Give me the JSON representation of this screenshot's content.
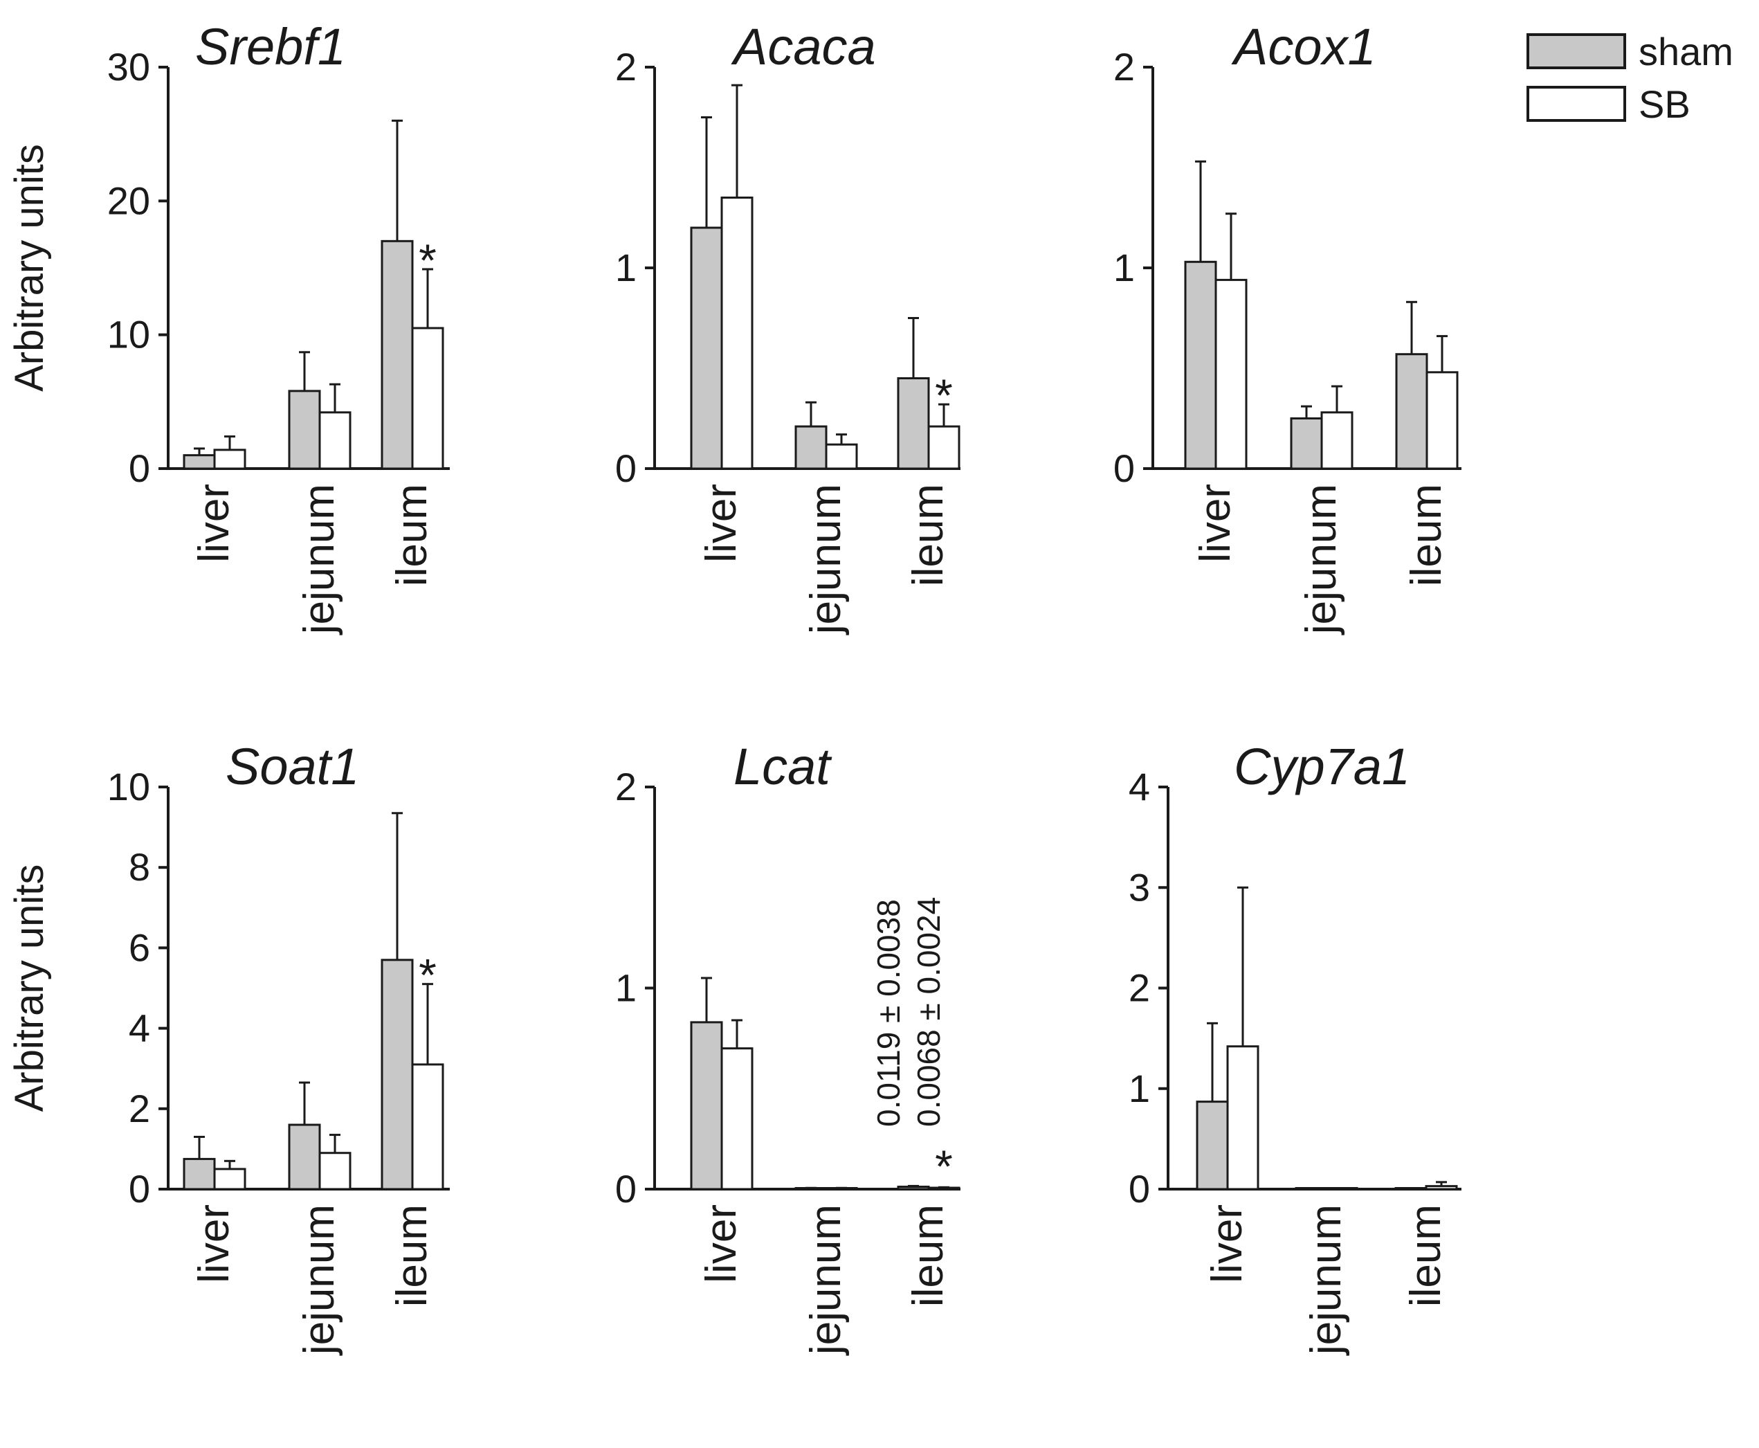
{
  "chart_data": [
    {
      "type": "bar",
      "title": "Srebf1",
      "ylabel": "Arbitrary units",
      "categories": [
        "liver",
        "jejunum",
        "ileum"
      ],
      "yticks": [
        0,
        10,
        20,
        30
      ],
      "ylim": [
        0,
        30
      ],
      "series": [
        {
          "name": "sham",
          "values": [
            1.0,
            5.8,
            17.0
          ],
          "errors": [
            0.5,
            2.9,
            9.0
          ]
        },
        {
          "name": "SB",
          "values": [
            1.4,
            4.2,
            10.5
          ],
          "errors": [
            1.0,
            2.1,
            4.4
          ]
        }
      ],
      "annotations": [
        {
          "text": "*",
          "category": "ileum"
        }
      ],
      "notes": []
    },
    {
      "type": "bar",
      "title": "Acaca",
      "ylabel": "",
      "categories": [
        "liver",
        "jejunum",
        "ileum"
      ],
      "yticks": [
        0,
        1,
        2
      ],
      "ylim": [
        0,
        2
      ],
      "series": [
        {
          "name": "sham",
          "values": [
            1.2,
            0.21,
            0.45
          ],
          "errors": [
            0.55,
            0.12,
            0.3
          ]
        },
        {
          "name": "SB",
          "values": [
            1.35,
            0.12,
            0.21
          ],
          "errors": [
            0.56,
            0.05,
            0.11
          ]
        }
      ],
      "annotations": [
        {
          "text": "*",
          "category": "ileum"
        }
      ],
      "notes": []
    },
    {
      "type": "bar",
      "title": "Acox1",
      "ylabel": "",
      "categories": [
        "liver",
        "jejunum",
        "ileum"
      ],
      "yticks": [
        0,
        1,
        2
      ],
      "ylim": [
        0,
        2
      ],
      "series": [
        {
          "name": "sham",
          "values": [
            1.03,
            0.25,
            0.57
          ],
          "errors": [
            0.5,
            0.06,
            0.26
          ]
        },
        {
          "name": "SB",
          "values": [
            0.94,
            0.28,
            0.48
          ],
          "errors": [
            0.33,
            0.13,
            0.18
          ]
        }
      ],
      "annotations": [],
      "notes": []
    },
    {
      "type": "bar",
      "title": "Soat1",
      "ylabel": "Arbitrary units",
      "categories": [
        "liver",
        "jejunum",
        "ileum"
      ],
      "yticks": [
        0,
        2,
        4,
        6,
        8,
        10
      ],
      "ylim": [
        0,
        10
      ],
      "series": [
        {
          "name": "sham",
          "values": [
            0.75,
            1.6,
            5.7
          ],
          "errors": [
            0.55,
            1.05,
            3.65
          ]
        },
        {
          "name": "SB",
          "values": [
            0.5,
            0.9,
            3.1
          ],
          "errors": [
            0.2,
            0.45,
            2.0
          ]
        }
      ],
      "annotations": [
        {
          "text": "*",
          "category": "ileum"
        }
      ],
      "notes": []
    },
    {
      "type": "bar",
      "title": "Lcat",
      "ylabel": "",
      "categories": [
        "liver",
        "jejunum",
        "ileum"
      ],
      "yticks": [
        0,
        1,
        2
      ],
      "ylim": [
        0,
        2
      ],
      "series": [
        {
          "name": "sham",
          "values": [
            0.83,
            0.004,
            0.0119
          ],
          "errors": [
            0.22,
            0.002,
            0.0038
          ]
        },
        {
          "name": "SB",
          "values": [
            0.7,
            0.004,
            0.0068
          ],
          "errors": [
            0.14,
            0.002,
            0.0024
          ]
        }
      ],
      "annotations": [
        {
          "text": "*",
          "category": "ileum"
        }
      ],
      "notes": [
        "0.0119 ± 0.0038",
        "0.0068 ± 0.0024"
      ]
    },
    {
      "type": "bar",
      "title": "Cyp7a1",
      "ylabel": "",
      "categories": [
        "liver",
        "jejunum",
        "ileum"
      ],
      "yticks": [
        0,
        1,
        2,
        3,
        4
      ],
      "ylim": [
        0,
        4
      ],
      "series": [
        {
          "name": "sham",
          "values": [
            0.87,
            0.005,
            0.005
          ],
          "errors": [
            0.78,
            0.003,
            0.003
          ]
        },
        {
          "name": "SB",
          "values": [
            1.42,
            0.005,
            0.03
          ],
          "errors": [
            1.58,
            0.003,
            0.04
          ]
        }
      ],
      "annotations": [],
      "notes": []
    }
  ],
  "legend": {
    "placement": "top-right",
    "items": [
      {
        "label": "sham",
        "color": "#c8c8c8"
      },
      {
        "label": "SB",
        "color": "#ffffff"
      }
    ]
  },
  "colors": {
    "sham": "#c8c8c8",
    "SB": "#ffffff",
    "stroke": "#1a1a1a"
  }
}
